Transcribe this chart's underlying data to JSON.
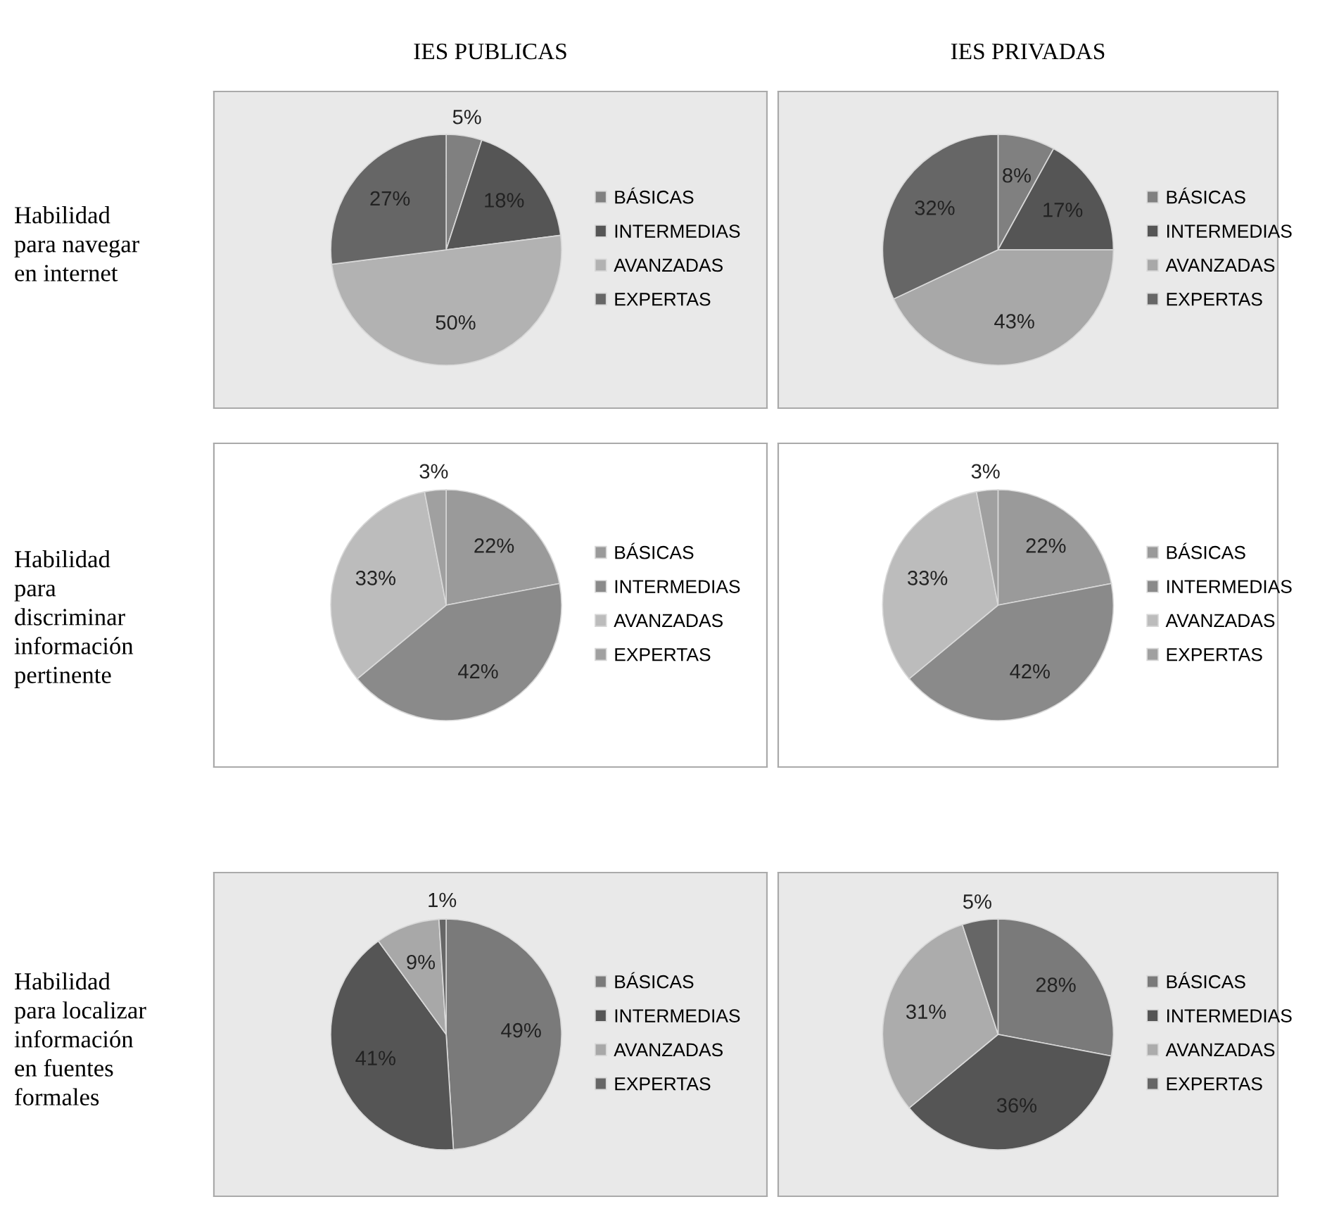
{
  "chart_data": [
    {
      "type": "pie",
      "title": "IES PUBLICAS",
      "ylabel": "Habilidad\npara navegar\nen internet",
      "categories": [
        "BÁSICAS",
        "INTERMEDIAS",
        "AVANZADAS",
        "EXPERTAS"
      ],
      "values": [
        5,
        18,
        50,
        27
      ],
      "value_labels": [
        "5%",
        "18%",
        "50%",
        "27%"
      ],
      "colors": [
        "#808080",
        "#555555",
        "#b2b2b2",
        "#666666"
      ],
      "legend": "right"
    },
    {
      "type": "pie",
      "title": "IES PRIVADAS",
      "categories": [
        "BÁSICAS",
        "INTERMEDIAS",
        "AVANZADAS",
        "EXPERTAS"
      ],
      "values": [
        8,
        17,
        43,
        32
      ],
      "value_labels": [
        "8%",
        "17%",
        "43%",
        "32%"
      ],
      "colors": [
        "#808080",
        "#555555",
        "#a8a8a8",
        "#666666"
      ],
      "legend": "right"
    },
    {
      "type": "pie",
      "ylabel": "Habilidad\npara\ndiscriminar\ninformación\npertinente",
      "categories": [
        "BÁSICAS",
        "INTERMEDIAS",
        "AVANZADAS",
        "EXPERTAS"
      ],
      "values": [
        22,
        42,
        33,
        3
      ],
      "value_labels": [
        "22%",
        "42%",
        "33%",
        "3%"
      ],
      "colors": [
        "#9a9a9a",
        "#8a8a8a",
        "#bcbcbc",
        "#a0a0a0"
      ],
      "legend": "right"
    },
    {
      "type": "pie",
      "categories": [
        "BÁSICAS",
        "INTERMEDIAS",
        "AVANZADAS",
        "EXPERTAS"
      ],
      "values": [
        22,
        42,
        33,
        3
      ],
      "value_labels": [
        "22%",
        "42%",
        "33%",
        "3%"
      ],
      "colors": [
        "#9a9a9a",
        "#8a8a8a",
        "#bcbcbc",
        "#a0a0a0"
      ],
      "legend": "right"
    },
    {
      "type": "pie",
      "ylabel": "Habilidad\npara localizar\ninformación\nen fuentes\nformales",
      "categories": [
        "BÁSICAS",
        "INTERMEDIAS",
        "AVANZADAS",
        "EXPERTAS"
      ],
      "values": [
        49,
        41,
        9,
        1
      ],
      "value_labels": [
        "49%",
        "41%",
        "9%",
        "1%"
      ],
      "colors": [
        "#7a7a7a",
        "#555555",
        "#a8a8a8",
        "#666666"
      ],
      "legend": "right"
    },
    {
      "type": "pie",
      "categories": [
        "BÁSICAS",
        "INTERMEDIAS",
        "AVANZADAS",
        "EXPERTAS"
      ],
      "values": [
        28,
        36,
        31,
        5
      ],
      "value_labels": [
        "28%",
        "36%",
        "31%",
        "5%"
      ],
      "colors": [
        "#7a7a7a",
        "#555555",
        "#acacac",
        "#666666"
      ],
      "legend": "right"
    }
  ]
}
